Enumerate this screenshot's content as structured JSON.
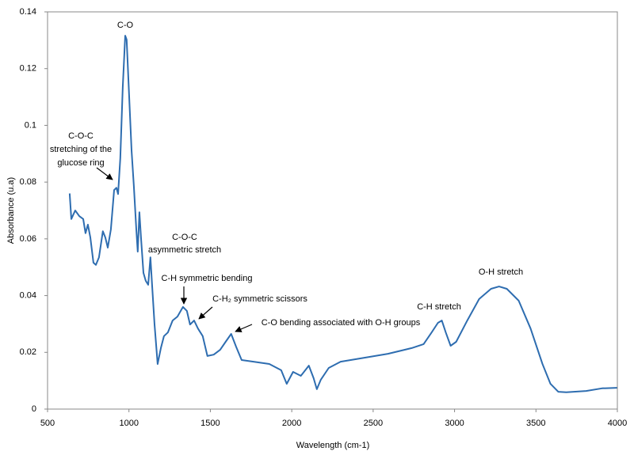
{
  "chart_data": {
    "type": "line",
    "x_label": "Wavelength (cm-1)",
    "y_label": "Absorbance (u.a)",
    "color": "#2e6db0",
    "xlim": [
      500,
      4000
    ],
    "xticks": [
      500,
      1000,
      1500,
      2000,
      2500,
      3000,
      3500,
      4000
    ],
    "ylim": [
      0,
      0.14
    ],
    "yticks": [
      0,
      0.02,
      0.04,
      0.06,
      0.08,
      0.1,
      0.12,
      0.14
    ],
    "annotations": [
      "C-O",
      "C-O-C",
      "stretching of the",
      "glucose ring",
      "C-O-C",
      "asymmetric stretch",
      "C-H symmetric bending",
      "C-H₂ symmetric scissors",
      "C-O bending associated with O-H groups",
      "C-H stretch",
      "O-H stretch"
    ],
    "x": [
      636,
      646,
      670,
      695,
      719,
      733,
      748,
      763,
      782,
      797,
      816,
      840,
      855,
      870,
      889,
      909,
      923,
      933,
      947,
      962,
      977,
      986,
      1001,
      1016,
      1030,
      1045,
      1054,
      1064,
      1074,
      1089,
      1103,
      1118,
      1132,
      1142,
      1157,
      1176,
      1196,
      1215,
      1239,
      1268,
      1298,
      1332,
      1356,
      1375,
      1400,
      1424,
      1453,
      1482,
      1521,
      1560,
      1594,
      1628,
      1658,
      1692,
      1765,
      1862,
      1935,
      1969,
      2008,
      2056,
      2105,
      2134,
      2154,
      2178,
      2227,
      2300,
      2446,
      2591,
      2737,
      2810,
      2859,
      2898,
      2922,
      2946,
      2976,
      3010,
      3078,
      3151,
      3224,
      3273,
      3321,
      3394,
      3467,
      3540,
      3589,
      3637,
      3686,
      3808,
      3905,
      3998
    ],
    "values": [
      0.076,
      0.067,
      0.07,
      0.068,
      0.067,
      0.062,
      0.065,
      0.0605,
      0.0516,
      0.0508,
      0.0535,
      0.0627,
      0.0605,
      0.0569,
      0.0633,
      0.0772,
      0.078,
      0.0758,
      0.0884,
      0.1135,
      0.1316,
      0.1302,
      0.1107,
      0.0912,
      0.0786,
      0.0633,
      0.0555,
      0.0694,
      0.0605,
      0.048,
      0.0452,
      0.0438,
      0.0535,
      0.0438,
      0.0298,
      0.0159,
      0.0215,
      0.0257,
      0.027,
      0.0312,
      0.0326,
      0.036,
      0.0346,
      0.0298,
      0.0312,
      0.0284,
      0.0257,
      0.0187,
      0.0192,
      0.0209,
      0.0237,
      0.0265,
      0.022,
      0.0173,
      0.0167,
      0.0159,
      0.0137,
      0.0089,
      0.0131,
      0.0117,
      0.0153,
      0.0109,
      0.007,
      0.0103,
      0.0145,
      0.0167,
      0.0181,
      0.0195,
      0.0215,
      0.0229,
      0.027,
      0.0304,
      0.0312,
      0.027,
      0.0223,
      0.0237,
      0.0312,
      0.0388,
      0.0424,
      0.0432,
      0.0424,
      0.0382,
      0.0284,
      0.0159,
      0.0089,
      0.0061,
      0.0059,
      0.0064,
      0.0073,
      0.0075
    ]
  }
}
